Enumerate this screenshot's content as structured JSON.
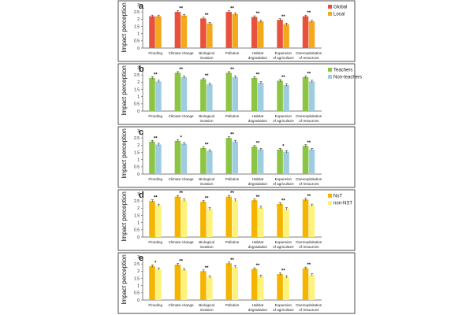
{
  "chart_data": [
    {
      "type": "bar",
      "panel_label": "a",
      "ylabel": "Impact perception",
      "ylim": [
        0,
        3
      ],
      "yticks": [
        0,
        0.5,
        1,
        1.5,
        2,
        2.5,
        3
      ],
      "categories": [
        "Flooding",
        "Climate change",
        "Biological invasion",
        "Pollution",
        "Habitat degradation",
        "Expansion of agriculture",
        "Overexploitation of resources"
      ],
      "series": [
        {
          "name": "Global",
          "color": "#e8523d",
          "values": [
            2.2,
            2.5,
            2.05,
            2.5,
            2.15,
            1.95,
            2.2
          ]
        },
        {
          "name": "Local",
          "color": "#f4a81c",
          "values": [
            2.2,
            2.25,
            1.7,
            2.35,
            1.85,
            1.65,
            1.85
          ]
        }
      ],
      "significance": [
        "",
        "**",
        "**",
        "**",
        "**",
        "**",
        "**"
      ],
      "legend": "right",
      "grid": false
    },
    {
      "type": "bar",
      "panel_label": "b",
      "ylabel": "Impact perception",
      "ylim": [
        0,
        3
      ],
      "yticks": [
        0,
        0.5,
        1,
        1.5,
        2,
        2.5,
        3
      ],
      "categories": [
        "Flooding",
        "Climate change",
        "Biological invasion",
        "Pollution",
        "Habitat degradation",
        "Expansion of agriculture",
        "Overexploitation of resources"
      ],
      "series": [
        {
          "name": "Teachers",
          "color": "#8cc443",
          "values": [
            2.3,
            2.65,
            2.2,
            2.65,
            2.3,
            2.1,
            2.35
          ]
        },
        {
          "name": "Non-teachers",
          "color": "#9fcde0",
          "values": [
            2.05,
            2.35,
            1.85,
            2.35,
            1.95,
            1.8,
            2.05
          ]
        }
      ],
      "significance": [
        "**",
        "**",
        "**",
        "**",
        "**",
        "**",
        "**"
      ],
      "legend": "right",
      "grid": false
    },
    {
      "type": "bar",
      "panel_label": "c",
      "ylabel": "Impact perception",
      "ylim": [
        0,
        3
      ],
      "yticks": [
        0,
        0.5,
        1,
        1.5,
        2,
        2.5,
        3
      ],
      "categories": [
        "Flooding",
        "Climate change",
        "Biological invasion",
        "Pollution",
        "Habitat degradation",
        "Expansion of agriculture",
        "Overexploitation of resources"
      ],
      "series": [
        {
          "name": "",
          "color": "#8cc443",
          "values": [
            2.25,
            2.3,
            1.8,
            2.5,
            1.9,
            1.7,
            1.95
          ]
        },
        {
          "name": "",
          "color": "#9fcde0",
          "values": [
            2.05,
            2.1,
            1.6,
            2.25,
            1.7,
            1.55,
            1.7
          ]
        }
      ],
      "significance": [
        "**",
        "*",
        "**",
        "**",
        "**",
        "*",
        "**"
      ],
      "legend": "none",
      "grid": false
    },
    {
      "type": "bar",
      "panel_label": "d",
      "ylabel": "Impact perception",
      "ylim": [
        0,
        3
      ],
      "yticks": [
        0,
        0.5,
        1,
        1.5,
        2,
        2.5,
        3
      ],
      "categories": [
        "Flooding",
        "Climate change",
        "Biological invasion",
        "Pollution",
        "Habitat degradation",
        "Expansion of agriculture",
        "Overexploitation of resources"
      ],
      "series": [
        {
          "name": "NsT",
          "color": "#f4b400",
          "values": [
            2.5,
            2.8,
            2.45,
            2.8,
            2.55,
            2.3,
            2.6
          ]
        },
        {
          "name": "non-NST",
          "color": "#fdf27a",
          "values": [
            2.2,
            2.55,
            1.95,
            2.55,
            2.05,
            1.95,
            2.2
          ]
        }
      ],
      "significance": [
        "**",
        "**",
        "**",
        "**",
        "**",
        "**",
        "**"
      ],
      "legend": "right",
      "grid": false
    },
    {
      "type": "bar",
      "panel_label": "e",
      "ylabel": "Impact perception",
      "ylim": [
        0,
        3
      ],
      "yticks": [
        0,
        0.5,
        1,
        1.5,
        2,
        2.5,
        3
      ],
      "categories": [
        "Flooding",
        "Climate change",
        "Biological invasion",
        "Pollution",
        "Habitat degradation",
        "Expansion of agriculture",
        "Overexploitation of resources"
      ],
      "series": [
        {
          "name": "",
          "color": "#f4b400",
          "values": [
            2.35,
            2.45,
            2.0,
            2.55,
            2.15,
            1.8,
            2.2
          ]
        },
        {
          "name": "",
          "color": "#fdf27a",
          "values": [
            2.15,
            2.1,
            1.6,
            2.3,
            1.65,
            1.6,
            1.75
          ]
        }
      ],
      "significance": [
        "*",
        "**",
        "**",
        "**",
        "**",
        "**",
        "**"
      ],
      "legend": "none",
      "grid": false
    }
  ]
}
